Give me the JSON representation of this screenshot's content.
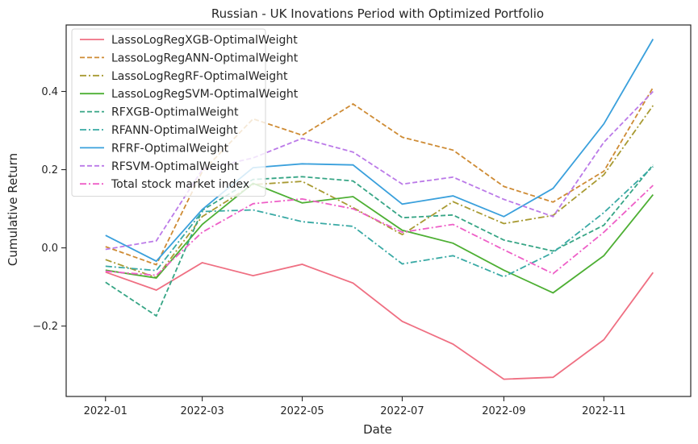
{
  "chart_data": {
    "type": "line",
    "title": "Russian - UK Inovations Period with  Optimized Portfolio",
    "xlabel": "Date",
    "ylabel": "Cumulative Return",
    "x": [
      "2022-01-01",
      "2022-02-01",
      "2022-03-01",
      "2022-04-01",
      "2022-05-01",
      "2022-06-01",
      "2022-07-01",
      "2022-08-01",
      "2022-09-01",
      "2022-10-01",
      "2022-11-01",
      "2022-12-01"
    ],
    "xticks": [
      "2022-01",
      "2022-03",
      "2022-05",
      "2022-07",
      "2022-09",
      "2022-11"
    ],
    "yticks": [
      -0.2,
      0.0,
      0.2,
      0.4
    ],
    "ytick_labels": [
      "−0.2",
      "0.0",
      "0.2",
      "0.4"
    ],
    "ylim": [
      -0.38,
      0.57
    ],
    "xlim": [
      "2021-12-08",
      "2022-12-24"
    ],
    "legend_position": "upper-left",
    "series": [
      {
        "name": "LassoLogRegXGB-OptimalWeight",
        "color": "#ef6f82",
        "dash": "solid",
        "values": [
          -0.062,
          -0.108,
          -0.038,
          -0.071,
          -0.042,
          -0.09,
          -0.188,
          -0.246,
          -0.336,
          -0.331,
          -0.235,
          -0.063
        ]
      },
      {
        "name": "LassoLogRegANN-OptimalWeight",
        "color": "#ce8b34",
        "dash": "dashed",
        "values": [
          0.003,
          -0.043,
          0.195,
          0.33,
          0.288,
          0.368,
          0.283,
          0.25,
          0.157,
          0.117,
          0.196,
          0.41
        ]
      },
      {
        "name": "LassoLogRegRF-OptimalWeight",
        "color": "#a89a32",
        "dash": "dashdot",
        "values": [
          -0.03,
          -0.076,
          0.08,
          0.162,
          0.17,
          0.103,
          0.034,
          0.118,
          0.062,
          0.083,
          0.187,
          0.364
        ]
      },
      {
        "name": "LassoLogRegSVM-OptimalWeight",
        "color": "#4daf33",
        "dash": "solid",
        "values": [
          -0.057,
          -0.077,
          0.06,
          0.165,
          0.115,
          0.131,
          0.045,
          0.012,
          -0.057,
          -0.115,
          -0.02,
          0.136
        ]
      },
      {
        "name": "RFXGB-OptimalWeight",
        "color": "#36a585",
        "dash": "dashed",
        "values": [
          -0.088,
          -0.174,
          0.096,
          0.175,
          0.182,
          0.171,
          0.077,
          0.084,
          0.02,
          -0.008,
          0.058,
          0.212
        ]
      },
      {
        "name": "RFANN-OptimalWeight",
        "color": "#38a9a4",
        "dash": "dashdot",
        "values": [
          -0.047,
          -0.058,
          0.093,
          0.097,
          0.067,
          0.055,
          -0.041,
          -0.02,
          -0.074,
          -0.012,
          0.09,
          0.208
        ]
      },
      {
        "name": "RFRF-OptimalWeight",
        "color": "#3aa0dc",
        "dash": "solid",
        "values": [
          0.032,
          -0.034,
          0.098,
          0.205,
          0.215,
          0.212,
          0.112,
          0.133,
          0.08,
          0.152,
          0.317,
          0.534
        ]
      },
      {
        "name": "RFSVM-OptimalWeight",
        "color": "#bb7ae8",
        "dash": "dashed",
        "values": [
          -0.004,
          0.018,
          0.2,
          0.23,
          0.28,
          0.245,
          0.163,
          0.181,
          0.124,
          0.08,
          0.27,
          0.4
        ]
      },
      {
        "name": "Total stock market index",
        "color": "#ee5fc7",
        "dash": "dashdot",
        "values": [
          -0.06,
          -0.07,
          0.04,
          0.113,
          0.125,
          0.1,
          0.04,
          0.06,
          -0.005,
          -0.066,
          0.04,
          0.16
        ]
      }
    ]
  }
}
